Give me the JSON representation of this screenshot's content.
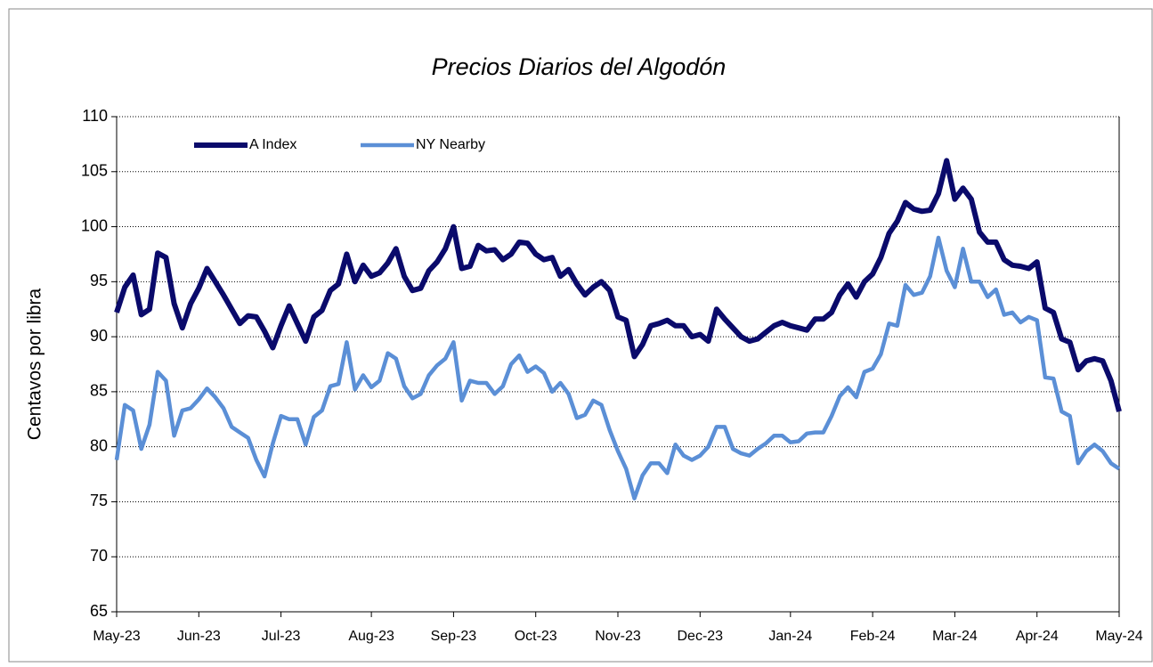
{
  "chart_data": {
    "type": "line",
    "title": "Precios Diarios del Algodón",
    "y_label": "Centavos por libra",
    "categories": [
      "May-23",
      null,
      null,
      null,
      null,
      null,
      null,
      null,
      null,
      null,
      "Jun-23",
      null,
      null,
      null,
      null,
      null,
      null,
      null,
      null,
      null,
      "Jul-23",
      null,
      null,
      null,
      null,
      null,
      null,
      null,
      null,
      null,
      null,
      "Aug-23",
      null,
      null,
      null,
      null,
      null,
      null,
      null,
      null,
      null,
      "Sep-23",
      null,
      null,
      null,
      null,
      null,
      null,
      null,
      null,
      null,
      "Oct-23",
      null,
      null,
      null,
      null,
      null,
      null,
      null,
      null,
      null,
      "Nov-23",
      null,
      null,
      null,
      null,
      null,
      null,
      null,
      null,
      null,
      "Dec-23",
      null,
      null,
      null,
      null,
      null,
      null,
      null,
      null,
      null,
      null,
      "Jan-24",
      null,
      null,
      null,
      null,
      null,
      null,
      null,
      null,
      null,
      "Feb-24",
      null,
      null,
      null,
      null,
      null,
      null,
      null,
      null,
      null,
      "Mar-24",
      null,
      null,
      null,
      null,
      null,
      null,
      null,
      null,
      null,
      "Apr-24",
      null,
      null,
      null,
      null,
      null,
      null,
      null,
      null,
      null,
      "May-24"
    ],
    "series": [
      {
        "name": "A Index",
        "color": "#0a0a6b",
        "values": [
          92.2,
          94.5,
          95.6,
          92,
          92.5,
          97.6,
          97.2,
          93,
          90.8,
          93,
          94.4,
          96.2,
          95,
          93.8,
          92.5,
          91.2,
          91.9,
          91.8,
          90.5,
          89,
          91,
          92.8,
          91.2,
          89.6,
          91.8,
          92.4,
          94.2,
          94.8,
          97.5,
          95,
          96.5,
          95.5,
          95.8,
          96.7,
          98,
          95.5,
          94.2,
          94.4,
          96,
          96.8,
          98,
          100,
          96.2,
          96.4,
          98.3,
          97.8,
          97.9,
          97,
          97.5,
          98.6,
          98.5,
          97.5,
          97,
          97.2,
          95.5,
          96.1,
          94.8,
          93.8,
          94.5,
          95,
          94.2,
          91.8,
          91.5,
          88.2,
          89.3,
          91,
          91.2,
          91.5,
          91,
          91,
          90,
          90.2,
          89.6,
          92.5,
          91.6,
          90.8,
          90,
          89.6,
          89.8,
          90.4,
          91,
          91.3,
          91,
          90.8,
          90.6,
          91.6,
          91.6,
          92.2,
          93.8,
          94.8,
          93.6,
          95,
          95.7,
          97.2,
          99.4,
          100.5,
          102.2,
          101.6,
          101.4,
          101.5,
          103,
          106,
          102.5,
          103.5,
          102.5,
          99.5,
          98.6,
          98.6,
          97,
          96.5,
          96.4,
          96.2,
          96.8,
          92.6,
          92.2,
          89.8,
          89.5,
          87,
          87.8,
          88,
          87.8,
          86,
          83.2
        ]
      },
      {
        "name": "NY Nearby",
        "color": "#5b8fd6",
        "values": [
          78.8,
          83.8,
          83.3,
          79.8,
          82,
          86.8,
          86,
          81,
          83.3,
          83.5,
          84.3,
          85.3,
          84.5,
          83.5,
          81.8,
          81.3,
          80.8,
          78.8,
          77.3,
          80.3,
          82.8,
          82.5,
          82.5,
          80.2,
          82.7,
          83.3,
          85.5,
          85.7,
          89.5,
          85.2,
          86.5,
          85.4,
          86,
          88.5,
          88,
          85.5,
          84.4,
          84.8,
          86.5,
          87.4,
          88,
          89.5,
          84.2,
          86,
          85.8,
          85.8,
          84.8,
          85.5,
          87.5,
          88.3,
          86.8,
          87.3,
          86.7,
          85,
          85.8,
          84.8,
          82.6,
          82.9,
          84.2,
          83.8,
          81.5,
          79.6,
          78,
          75.3,
          77.4,
          78.5,
          78.5,
          77.6,
          80.2,
          79.2,
          78.8,
          79.2,
          80,
          81.8,
          81.8,
          79.8,
          79.4,
          79.2,
          79.8,
          80.3,
          81,
          81,
          80.4,
          80.5,
          81.2,
          81.3,
          81.3,
          82.8,
          84.6,
          85.4,
          84.5,
          86.8,
          87.1,
          88.4,
          91.2,
          91,
          94.7,
          93.8,
          94,
          95.5,
          99,
          96,
          94.5,
          98,
          95,
          95,
          93.6,
          94.3,
          92,
          92.2,
          91.3,
          91.8,
          91.5,
          86.3,
          86.2,
          83.2,
          82.8,
          78.5,
          79.6,
          80.2,
          79.6,
          78.5,
          78
        ]
      }
    ],
    "ylim": [
      65,
      110
    ],
    "yticks": [
      65,
      70,
      75,
      80,
      85,
      90,
      95,
      100,
      105,
      110
    ],
    "grid": true,
    "legend": "top-left"
  }
}
